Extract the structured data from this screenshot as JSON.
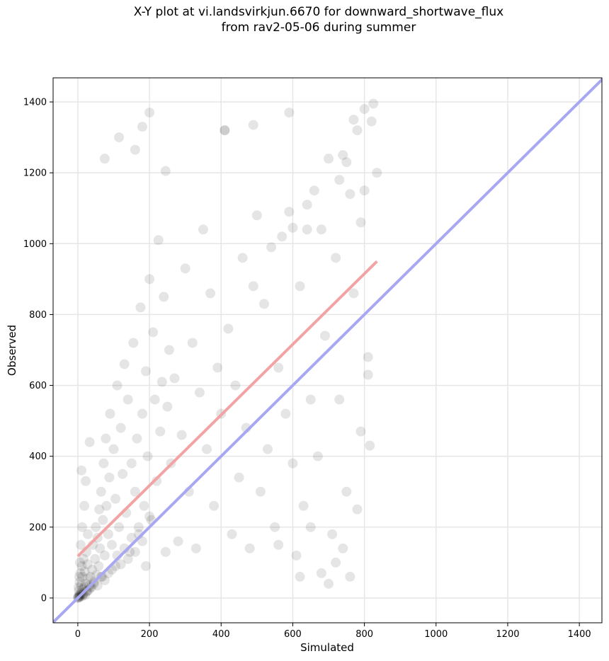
{
  "chart_data": {
    "type": "scatter",
    "title": [
      "X-Y plot at vi.landsvirkjun.6670 for downward_shortwave_flux",
      "from rav2-05-06 during summer"
    ],
    "x_label": "Simulated",
    "y_label": "Observed",
    "xlim": [
      -69,
      1463
    ],
    "ylim": [
      -70,
      1468
    ],
    "xticks": [
      0,
      200,
      400,
      600,
      800,
      1000,
      1200,
      1400
    ],
    "yticks": [
      0,
      200,
      400,
      600,
      800,
      1000,
      1200,
      1400
    ],
    "grid": true,
    "color": "#000000",
    "x": [
      0,
      1,
      2,
      3,
      4,
      5,
      6,
      8,
      10,
      12,
      14,
      15,
      18,
      20,
      22,
      25,
      28,
      30,
      32,
      35,
      3,
      5,
      7,
      9,
      11,
      13,
      16,
      19,
      24,
      27,
      38,
      40,
      42,
      45,
      48,
      50,
      52,
      55,
      58,
      60,
      62,
      65,
      68,
      70,
      72,
      75,
      78,
      80,
      85,
      88,
      90,
      95,
      100,
      105,
      110,
      115,
      120,
      125,
      130,
      135,
      140,
      145,
      150,
      155,
      160,
      165,
      170,
      175,
      180,
      185,
      190,
      195,
      200,
      205,
      210,
      215,
      220,
      225,
      230,
      235,
      240,
      245,
      250,
      255,
      260,
      270,
      280,
      290,
      300,
      310,
      320,
      330,
      340,
      350,
      360,
      370,
      380,
      390,
      400,
      410,
      420,
      430,
      440,
      450,
      460,
      470,
      480,
      490,
      500,
      510,
      520,
      530,
      540,
      550,
      560,
      570,
      580,
      590,
      600,
      610,
      620,
      630,
      640,
      650,
      660,
      670,
      680,
      690,
      700,
      710,
      720,
      730,
      740,
      750,
      760,
      770,
      780,
      790,
      800,
      810,
      75,
      115,
      200,
      180,
      160,
      245,
      410,
      490,
      590,
      825,
      760,
      680,
      620,
      720,
      780,
      740,
      650,
      560,
      700,
      815,
      15,
      25,
      35,
      45,
      55,
      65,
      75,
      85,
      95,
      105,
      110,
      120,
      130,
      140,
      150,
      160,
      170,
      180,
      190,
      200,
      8,
      12,
      18,
      22,
      28,
      33,
      6,
      10,
      4,
      2,
      820,
      835,
      800,
      790,
      810,
      770,
      750,
      730,
      600,
      640
    ],
    "values": [
      0,
      3,
      1,
      6,
      2,
      10,
      4,
      8,
      15,
      5,
      25,
      12,
      30,
      8,
      40,
      18,
      55,
      22,
      35,
      60,
      20,
      45,
      70,
      35,
      90,
      60,
      110,
      75,
      130,
      95,
      30,
      80,
      150,
      45,
      110,
      200,
      65,
      170,
      90,
      250,
      140,
      300,
      60,
      220,
      380,
      120,
      450,
      260,
      180,
      340,
      520,
      150,
      420,
      280,
      600,
      200,
      480,
      350,
      660,
      240,
      560,
      130,
      380,
      720,
      300,
      450,
      180,
      820,
      520,
      260,
      640,
      400,
      900,
      220,
      750,
      560,
      330,
      1010,
      470,
      610,
      850,
      130,
      540,
      700,
      380,
      620,
      160,
      460,
      930,
      300,
      720,
      140,
      580,
      1040,
      420,
      860,
      260,
      650,
      520,
      1320,
      760,
      180,
      600,
      340,
      960,
      480,
      140,
      880,
      1080,
      300,
      830,
      420,
      990,
      200,
      650,
      1020,
      520,
      1090,
      380,
      120,
      880,
      260,
      1110,
      560,
      1150,
      400,
      1040,
      740,
      1240,
      180,
      960,
      560,
      1250,
      300,
      1140,
      860,
      1320,
      470,
      1380,
      630,
      1240,
      1300,
      1370,
      1330,
      1265,
      1205,
      1320,
      1335,
      1370,
      1395,
      60,
      70,
      60,
      100,
      250,
      140,
      200,
      150,
      40,
      430,
      10,
      20,
      30,
      40,
      35,
      60,
      50,
      70,
      80,
      90,
      120,
      95,
      140,
      110,
      170,
      130,
      200,
      160,
      90,
      230,
      150,
      200,
      260,
      330,
      180,
      440,
      100,
      360,
      60,
      30,
      1345,
      1200,
      1150,
      1060,
      680,
      1350,
      1230,
      1180,
      1045,
      1040
    ],
    "lines": [
      {
        "color": "#a8a8f2",
        "x": [
          -70,
          1470
        ],
        "values": [
          -70,
          1470
        ]
      },
      {
        "color": "#f2a3a3",
        "x": [
          0,
          835
        ],
        "values": [
          118,
          950
        ]
      }
    ]
  }
}
